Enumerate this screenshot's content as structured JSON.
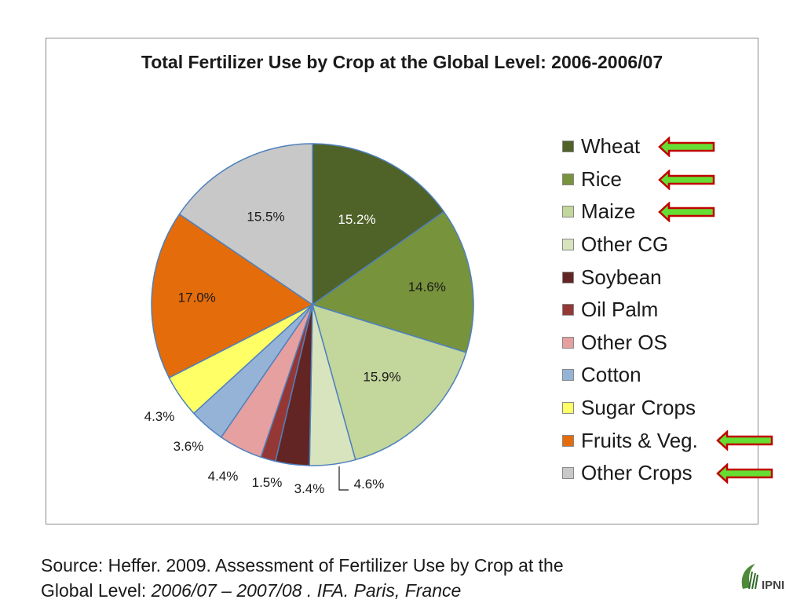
{
  "chart_data": {
    "type": "pie",
    "title": "Total Fertilizer Use by Crop at the Global Level: 2006-2006/07",
    "slices": [
      {
        "name": "Wheat",
        "value": 15.2,
        "label": "15.2%",
        "color": "#4f6228",
        "label_color": "#ffffff",
        "arrow": true
      },
      {
        "name": "Rice",
        "value": 14.6,
        "label": "14.6%",
        "color": "#77933c",
        "label_color": "#1a1a1a",
        "arrow": true
      },
      {
        "name": "Maize",
        "value": 15.9,
        "label": "15.9%",
        "color": "#c3d69b",
        "label_color": "#1a1a1a",
        "arrow": true
      },
      {
        "name": "Other CG",
        "value": 4.6,
        "label": "4.6%",
        "color": "#d7e4bd",
        "label_color": "#1a1a1a",
        "arrow": false
      },
      {
        "name": "Soybean",
        "value": 3.4,
        "label": "3.4%",
        "color": "#632523",
        "label_color": "#1a1a1a",
        "arrow": false
      },
      {
        "name": "Oil Palm",
        "value": 1.5,
        "label": "1.5%",
        "color": "#953735",
        "label_color": "#1a1a1a",
        "arrow": false
      },
      {
        "name": "Other OS",
        "value": 4.4,
        "label": "4.4%",
        "color": "#e6a0a0",
        "label_color": "#1a1a1a",
        "arrow": false
      },
      {
        "name": "Cotton",
        "value": 3.6,
        "label": "3.6%",
        "color": "#95b3d7",
        "label_color": "#1a1a1a",
        "arrow": false
      },
      {
        "name": "Sugar Crops",
        "value": 4.3,
        "label": "4.3%",
        "color": "#ffff66",
        "label_color": "#1a1a1a",
        "arrow": false
      },
      {
        "name": "Fruits & Veg.",
        "value": 17.0,
        "label": "17.0%",
        "color": "#e46c0a",
        "label_color": "#1a1a1a",
        "arrow": true
      },
      {
        "name": "Other Crops",
        "value": 15.5,
        "label": "15.5%",
        "color": "#c8c8c8",
        "label_color": "#1a1a1a",
        "arrow": true
      }
    ],
    "legend_placement": "right",
    "slice_border_color": "#4f81bd"
  },
  "source": {
    "line1": "Source: Heffer. 2009.   Assessment of Fertilizer Use by Crop at the",
    "line2_prefix": "Global Level: ",
    "line2_italic": "2006/07 – 2007/08 . IFA. Paris, France"
  },
  "logo": {
    "text": "IPNI"
  },
  "arrow_colors": {
    "fill": "#66dd33",
    "stroke": "#c00000"
  }
}
